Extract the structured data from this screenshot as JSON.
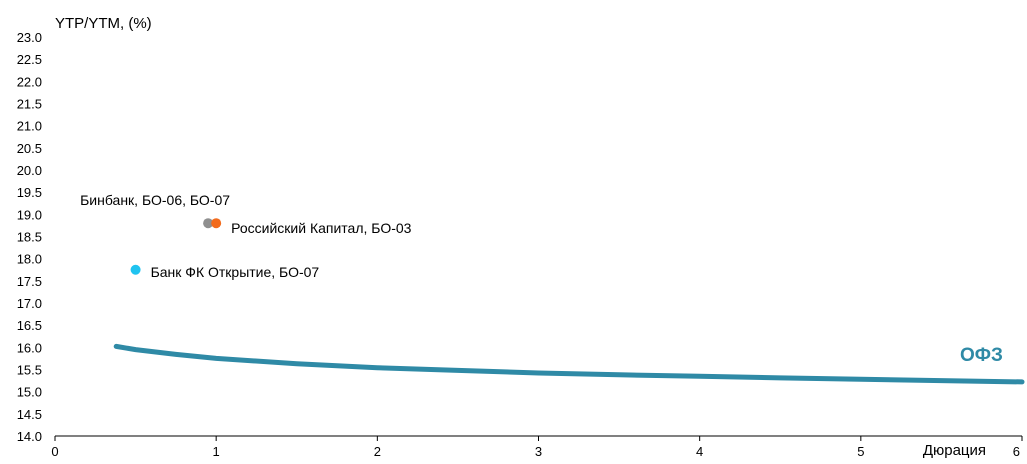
{
  "chart_data": {
    "type": "scatter",
    "ylabel": "YTP/YTM, (%)",
    "xlabel": "Дюрация",
    "ylim": [
      14.0,
      23.0
    ],
    "xlim": [
      0,
      6
    ],
    "y_ticks": [
      "14.0",
      "14.5",
      "15.0",
      "15.5",
      "16.0",
      "16.5",
      "17.0",
      "17.5",
      "18.0",
      "18.5",
      "19.0",
      "19.5",
      "20.0",
      "20.5",
      "21.0",
      "21.5",
      "22.0",
      "22.5",
      "23.0"
    ],
    "x_ticks": [
      "0",
      "1",
      "2",
      "3",
      "4",
      "5",
      "6"
    ],
    "grid": false,
    "points": [
      {
        "label": "Бинбанк, БО-06, БО-07",
        "x": 0.95,
        "y": 18.8,
        "color": "#8f8f8f"
      },
      {
        "label": "Российский Капитал, БО-03",
        "x": 1.0,
        "y": 18.8,
        "color": "#f26b1d"
      },
      {
        "label": "Банк ФК Открытие, БО-07",
        "x": 0.5,
        "y": 17.75,
        "color": "#1fc3f0"
      }
    ],
    "curve": {
      "name": "ОФЗ",
      "color": "#2f8aa6",
      "x": [
        0.38,
        0.5,
        0.75,
        1.0,
        1.5,
        2.0,
        2.5,
        3.0,
        3.5,
        4.0,
        4.5,
        5.0,
        5.5,
        6.0
      ],
      "y": [
        16.02,
        15.95,
        15.84,
        15.75,
        15.63,
        15.54,
        15.48,
        15.42,
        15.38,
        15.35,
        15.31,
        15.28,
        15.25,
        15.22
      ]
    }
  }
}
